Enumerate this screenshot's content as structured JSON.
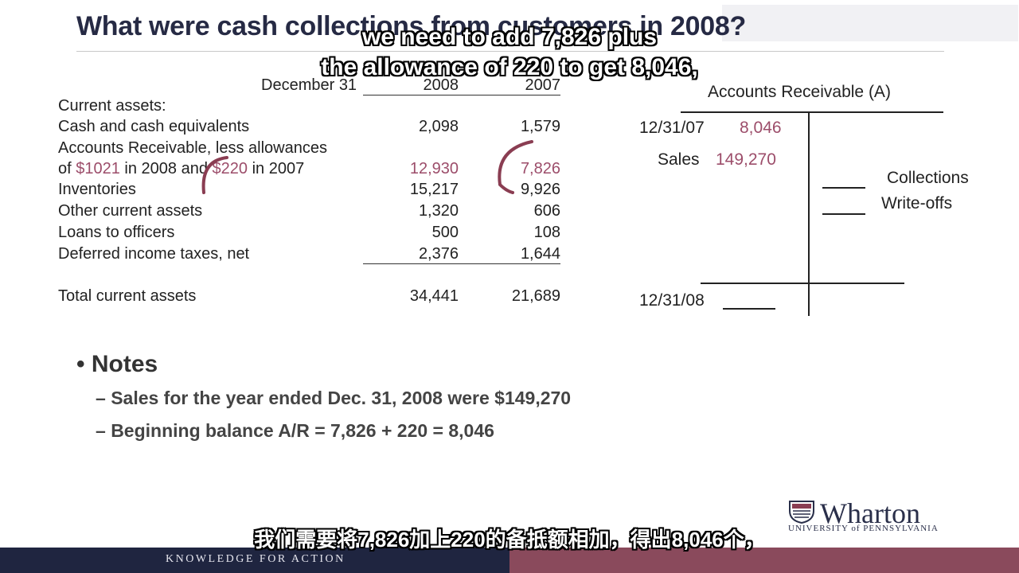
{
  "slide": {
    "title": "What were cash collections from customers in 2008?",
    "subtitle_top_line1": "we need to add 7,826 plus",
    "subtitle_top_line2": "the allowance of 220 to get 8,046,",
    "subtitle_bottom": "我们需要将7,826加上220的备抵额相加，得出8,046个，"
  },
  "balance_sheet": {
    "header_label": "December 31",
    "year_1": "2008",
    "year_2": "2007",
    "section_label": "Current assets:",
    "rows": [
      {
        "label": "Cash and cash equivalents",
        "v2008": "2,098",
        "v2007": "1,579"
      },
      {
        "label": "Accounts Receivable, less allowances",
        "v2008": "",
        "v2007": ""
      },
      {
        "label_a": "of ",
        "label_b": "$1021",
        "label_c": " in 2008 and ",
        "label_d": "$220",
        "label_e": " in 2007",
        "v2008": "12,930",
        "v2007": "7,826"
      },
      {
        "label": "Inventories",
        "v2008": "15,217",
        "v2007": "9,926"
      },
      {
        "label": "Other current assets",
        "v2008": "1,320",
        "v2007": "606"
      },
      {
        "label": "Loans to officers",
        "v2008": "500",
        "v2007": "108"
      },
      {
        "label": "Deferred income taxes, net",
        "v2008": "2,376",
        "v2007": "1,644"
      }
    ],
    "total": {
      "label": "Total current assets",
      "v2008": "34,441",
      "v2007": "21,689"
    }
  },
  "t_account": {
    "title": "Accounts Receivable (A)",
    "beginning_date": "12/31/07",
    "beginning_value": "8,046",
    "sales_label": "Sales",
    "sales_value": "149,270",
    "collections_label": "Collections",
    "writeoffs_label": "Write-offs",
    "ending_date": "12/31/08"
  },
  "notes": {
    "heading": "Notes",
    "items": [
      "Sales for the year ended Dec. 31, 2008 were $149,270",
      "Beginning balance A/R = 7,826 + 220 = 8,046"
    ]
  },
  "footer": {
    "tagline": "KNOWLEDGE FOR ACTION",
    "logo_name": "Wharton",
    "logo_sub": "UNIVERSITY of PENNSYLVANIA"
  },
  "colors": {
    "pink_values": "#9c4d6a",
    "title_navy": "#262a44",
    "footer_navy": "#1f2540",
    "footer_maroon": "#8a4a5c"
  }
}
